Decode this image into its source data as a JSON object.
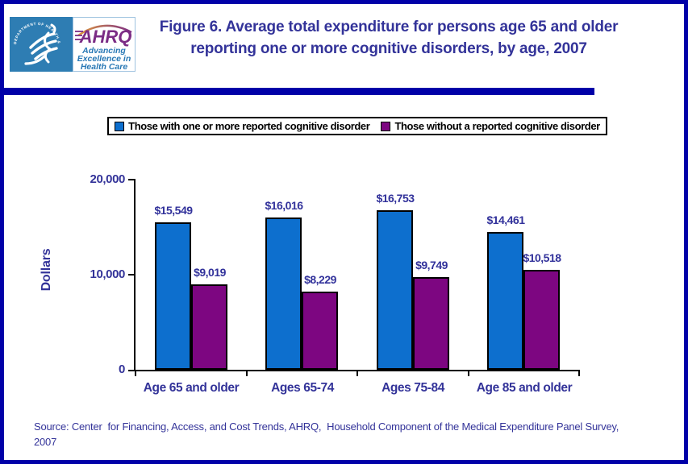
{
  "header": {
    "title_line1": "Figure 6. Average total expenditure for persons age 65 and older",
    "title_line2": "reporting one or more cognitive disorders, by age, 2007",
    "logo": {
      "hhs_ring_text": "DEPARTMENT OF HEALTH & HUMAN SERVICES · USA",
      "ahrq_acronym": "AHRQ",
      "ahrq_tagline": [
        "Advancing",
        "Excellence in",
        "Health Care"
      ]
    }
  },
  "chart_data": {
    "type": "bar",
    "title": "Figure 6. Average total expenditure for persons age 65 and older reporting one or more cognitive disorders, by age, 2007",
    "categories": [
      "Age 65 and older",
      "Ages 65-74",
      "Ages 75-84",
      "Age 85 and older"
    ],
    "series": [
      {
        "name": "Those with one or more reported cognitive disorder",
        "color": "#0d6fce",
        "values": [
          15549,
          16016,
          16753,
          14461
        ]
      },
      {
        "name": "Those without a reported cognitive disorder",
        "color": "#7d0681",
        "values": [
          9019,
          8229,
          9749,
          10518
        ]
      }
    ],
    "xlabel": "",
    "ylabel": "Dollars",
    "ylim": [
      0,
      20000
    ],
    "yticks": [
      0,
      10000,
      20000
    ],
    "ytick_labels": [
      "0",
      "10,000",
      "20,000"
    ],
    "value_prefix": "$",
    "grid": false,
    "legend_position": "top"
  },
  "source": {
    "line1": "Source: Center  for Financing, Access, and Cost Trends, AHRQ,  Household Component of the Medical Expenditure Panel Survey,",
    "line2": "2007"
  },
  "colors": {
    "frame_border": "#0000a8",
    "title_text": "#333399",
    "axis_text": "#333399",
    "bar_blue": "#0d6fce",
    "bar_purple": "#7d0681",
    "hhs_blue": "#2e7db3",
    "ahrq_purple": "#7b2c85",
    "arc_orange": "#e09a3c"
  }
}
